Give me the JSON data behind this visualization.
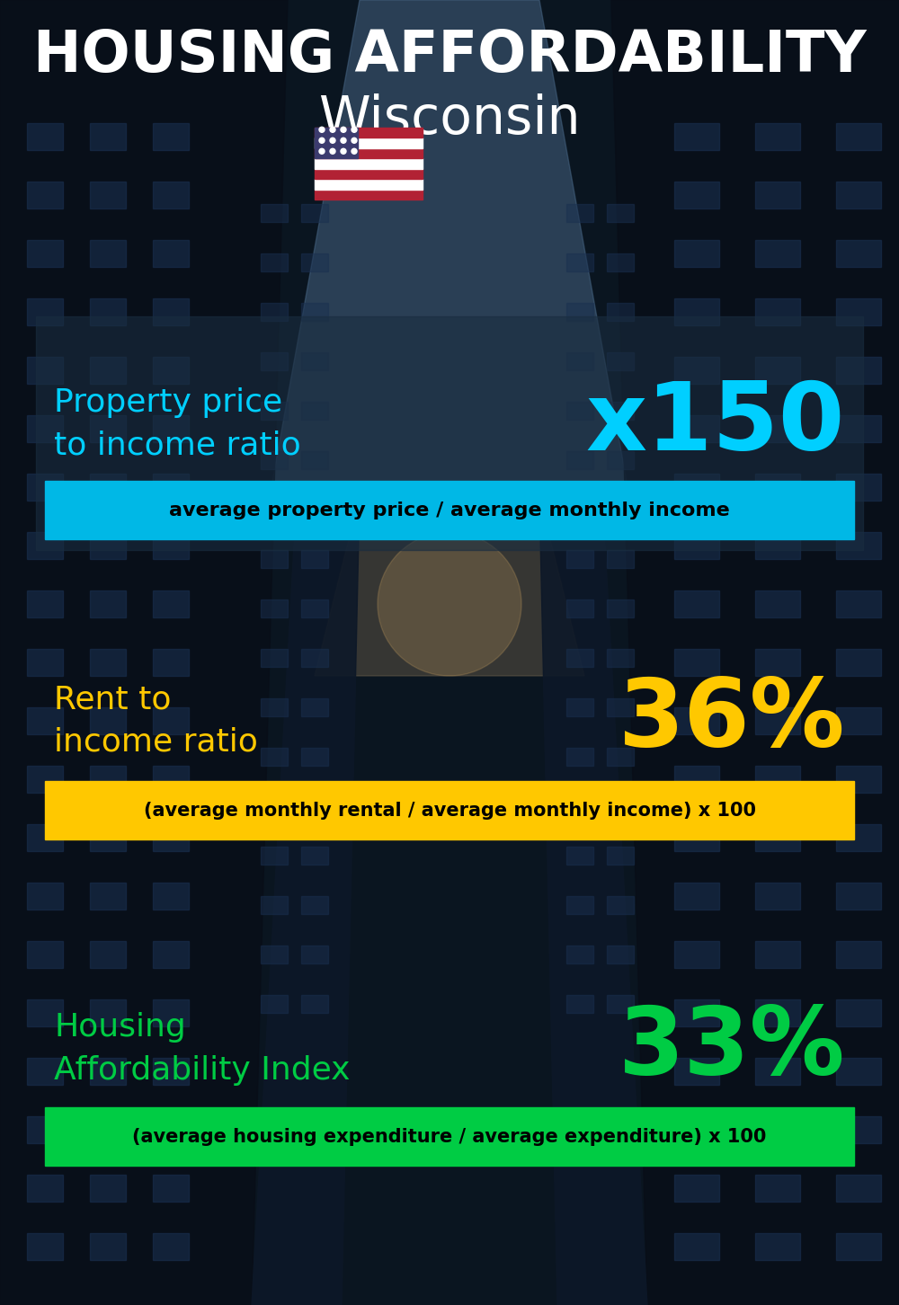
{
  "title_line1": "HOUSING AFFORDABILITY",
  "title_line2": "Wisconsin",
  "flag": "🇺🇸",
  "section1_label": "Property price\nto income ratio",
  "section1_value": "x150",
  "section1_label_color": "#00cfff",
  "section1_value_color": "#00cfff",
  "section1_bar_text": "average property price / average monthly income",
  "section1_bar_color": "#00b8e6",
  "section2_label": "Rent to\nincome ratio",
  "section2_value": "36%",
  "section2_label_color": "#ffc800",
  "section2_value_color": "#ffc800",
  "section2_bar_text": "(average monthly rental / average monthly income) x 100",
  "section2_bar_color": "#ffc800",
  "section3_label": "Housing\nAffordability Index",
  "section3_value": "33%",
  "section3_label_color": "#00cc44",
  "section3_value_color": "#00cc44",
  "section3_bar_text": "(average housing expenditure / average expenditure) x 100",
  "section3_bar_color": "#00cc44",
  "bg_color": "#0a1520",
  "title_color": "#ffffff",
  "bar_text_color": "#000000",
  "panel1_color": "#1c2e40",
  "panel1_alpha": 0.7
}
